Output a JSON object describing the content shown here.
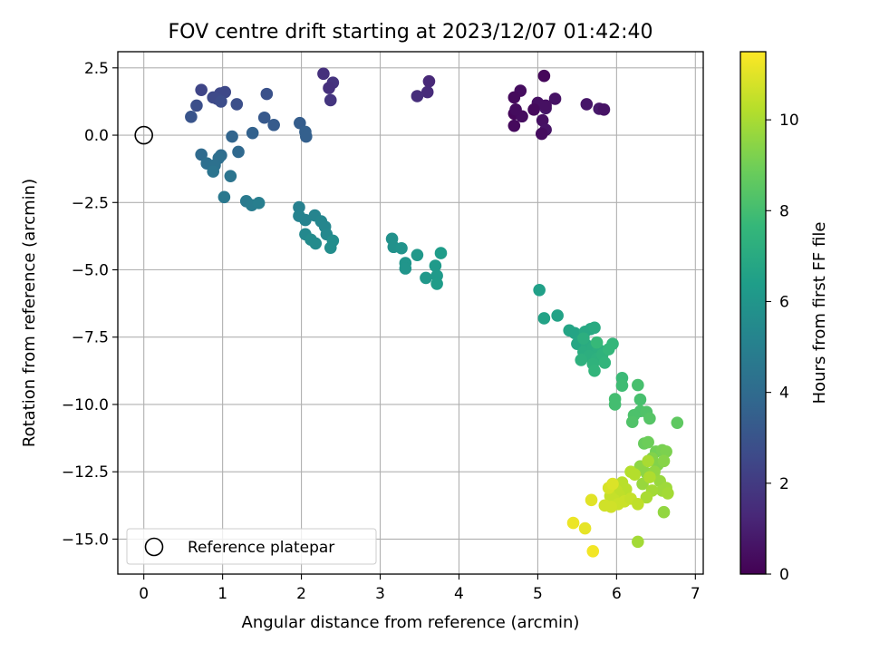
{
  "chart_data": {
    "type": "scatter",
    "title": "FOV centre drift starting at 2023/12/07 01:42:40",
    "xlabel": "Angular distance from reference (arcmin)",
    "ylabel": "Rotation from reference (arcmin)",
    "xlim": [
      -0.33,
      7.1
    ],
    "ylim": [
      -16.3,
      3.1
    ],
    "xticks": [
      0,
      1,
      2,
      3,
      4,
      5,
      6,
      7
    ],
    "yticks": [
      2.5,
      0.0,
      -2.5,
      -5.0,
      -7.5,
      -10.0,
      -12.5,
      -15.0
    ],
    "xtick_labels": [
      "0",
      "1",
      "2",
      "3",
      "4",
      "5",
      "6",
      "7"
    ],
    "ytick_labels": [
      "2.5",
      "0.0",
      "−2.5",
      "−5.0",
      "−7.5",
      "−10.0",
      "−12.5",
      "−15.0"
    ],
    "grid": true,
    "legend": {
      "position": "lower-left",
      "entries": [
        "Reference platepar"
      ]
    },
    "reference_point": {
      "x": 0.0,
      "y": 0.0
    },
    "colorbar": {
      "label": "Hours from first FF file",
      "range": [
        0,
        11.5
      ],
      "ticks": [
        0,
        2,
        4,
        6,
        8,
        10
      ],
      "tick_labels": [
        "0",
        "2",
        "4",
        "6",
        "8",
        "10"
      ],
      "colormap": "viridis"
    },
    "colormap_stops": [
      "#440154",
      "#482878",
      "#3e4989",
      "#31688e",
      "#26828e",
      "#1f9e89",
      "#35b779",
      "#6ece58",
      "#b5de2b",
      "#fde725"
    ],
    "points": [
      {
        "x": 5.08,
        "y": 2.2,
        "c": 0.2
      },
      {
        "x": 4.78,
        "y": 1.65,
        "c": 0.4
      },
      {
        "x": 4.7,
        "y": 1.4,
        "c": 0.3
      },
      {
        "x": 5.0,
        "y": 1.2,
        "c": 0.5
      },
      {
        "x": 5.22,
        "y": 1.35,
        "c": 0.6
      },
      {
        "x": 5.1,
        "y": 1.0,
        "c": 0.7
      },
      {
        "x": 4.95,
        "y": 0.95,
        "c": 0.3
      },
      {
        "x": 4.7,
        "y": 0.8,
        "c": 0.2
      },
      {
        "x": 4.8,
        "y": 0.7,
        "c": 0.4
      },
      {
        "x": 5.06,
        "y": 0.55,
        "c": 0.5
      },
      {
        "x": 4.7,
        "y": 0.35,
        "c": 0.3
      },
      {
        "x": 5.1,
        "y": 0.2,
        "c": 0.6
      },
      {
        "x": 5.05,
        "y": 0.05,
        "c": 0.4
      },
      {
        "x": 5.62,
        "y": 1.15,
        "c": 0.7
      },
      {
        "x": 5.78,
        "y": 0.98,
        "c": 0.8
      },
      {
        "x": 5.84,
        "y": 0.95,
        "c": 0.6
      },
      {
        "x": 5.1,
        "y": 1.1,
        "c": 0.5
      },
      {
        "x": 4.72,
        "y": 0.95,
        "c": 0.35
      },
      {
        "x": 3.62,
        "y": 2.0,
        "c": 1.3
      },
      {
        "x": 3.6,
        "y": 1.6,
        "c": 1.4
      },
      {
        "x": 3.47,
        "y": 1.45,
        "c": 1.5
      },
      {
        "x": 2.28,
        "y": 2.28,
        "c": 1.6
      },
      {
        "x": 2.4,
        "y": 1.95,
        "c": 1.7
      },
      {
        "x": 2.35,
        "y": 1.75,
        "c": 1.6
      },
      {
        "x": 2.37,
        "y": 1.3,
        "c": 1.8
      },
      {
        "x": 0.73,
        "y": 1.68,
        "c": 2.4
      },
      {
        "x": 0.97,
        "y": 1.55,
        "c": 2.5
      },
      {
        "x": 1.03,
        "y": 1.6,
        "c": 2.5
      },
      {
        "x": 0.88,
        "y": 1.4,
        "c": 2.6
      },
      {
        "x": 0.93,
        "y": 1.35,
        "c": 2.6
      },
      {
        "x": 0.98,
        "y": 1.25,
        "c": 2.7
      },
      {
        "x": 1.18,
        "y": 1.15,
        "c": 2.8
      },
      {
        "x": 0.67,
        "y": 1.1,
        "c": 2.8
      },
      {
        "x": 0.6,
        "y": 0.68,
        "c": 3.0
      },
      {
        "x": 1.56,
        "y": 1.53,
        "c": 2.9
      },
      {
        "x": 1.53,
        "y": 0.65,
        "c": 3.2
      },
      {
        "x": 1.65,
        "y": 0.38,
        "c": 3.3
      },
      {
        "x": 1.98,
        "y": 0.45,
        "c": 3.4
      },
      {
        "x": 2.05,
        "y": 0.12,
        "c": 3.5
      },
      {
        "x": 2.06,
        "y": -0.05,
        "c": 3.5
      },
      {
        "x": 1.38,
        "y": 0.08,
        "c": 3.6
      },
      {
        "x": 1.12,
        "y": -0.05,
        "c": 3.7
      },
      {
        "x": 1.2,
        "y": -0.62,
        "c": 3.9
      },
      {
        "x": 0.73,
        "y": -0.72,
        "c": 4.0
      },
      {
        "x": 0.98,
        "y": -0.75,
        "c": 4.1
      },
      {
        "x": 0.95,
        "y": -0.85,
        "c": 4.2
      },
      {
        "x": 0.8,
        "y": -1.05,
        "c": 4.2
      },
      {
        "x": 0.9,
        "y": -1.12,
        "c": 4.3
      },
      {
        "x": 0.88,
        "y": -1.35,
        "c": 4.4
      },
      {
        "x": 1.1,
        "y": -1.52,
        "c": 4.4
      },
      {
        "x": 1.02,
        "y": -2.3,
        "c": 4.6
      },
      {
        "x": 1.3,
        "y": -2.45,
        "c": 4.7
      },
      {
        "x": 1.37,
        "y": -2.6,
        "c": 4.8
      },
      {
        "x": 1.46,
        "y": -2.52,
        "c": 4.9
      },
      {
        "x": 1.97,
        "y": -2.68,
        "c": 5.0
      },
      {
        "x": 1.97,
        "y": -3.0,
        "c": 5.1
      },
      {
        "x": 2.05,
        "y": -3.15,
        "c": 5.1
      },
      {
        "x": 2.17,
        "y": -2.98,
        "c": 5.2
      },
      {
        "x": 2.25,
        "y": -3.2,
        "c": 5.3
      },
      {
        "x": 2.3,
        "y": -3.4,
        "c": 5.3
      },
      {
        "x": 2.32,
        "y": -3.68,
        "c": 5.4
      },
      {
        "x": 2.05,
        "y": -3.68,
        "c": 5.4
      },
      {
        "x": 2.12,
        "y": -3.88,
        "c": 5.5
      },
      {
        "x": 2.18,
        "y": -4.02,
        "c": 5.5
      },
      {
        "x": 2.4,
        "y": -3.92,
        "c": 5.6
      },
      {
        "x": 2.37,
        "y": -4.18,
        "c": 5.6
      },
      {
        "x": 3.15,
        "y": -3.85,
        "c": 5.8
      },
      {
        "x": 3.17,
        "y": -4.15,
        "c": 5.8
      },
      {
        "x": 3.27,
        "y": -4.2,
        "c": 5.9
      },
      {
        "x": 3.32,
        "y": -4.75,
        "c": 6.0
      },
      {
        "x": 3.32,
        "y": -4.95,
        "c": 6.0
      },
      {
        "x": 3.47,
        "y": -4.45,
        "c": 6.1
      },
      {
        "x": 3.58,
        "y": -5.3,
        "c": 6.1
      },
      {
        "x": 3.7,
        "y": -4.85,
        "c": 6.2
      },
      {
        "x": 3.72,
        "y": -5.22,
        "c": 6.2
      },
      {
        "x": 3.72,
        "y": -5.52,
        "c": 6.3
      },
      {
        "x": 3.77,
        "y": -4.38,
        "c": 6.3
      },
      {
        "x": 5.02,
        "y": -5.75,
        "c": 6.5
      },
      {
        "x": 5.08,
        "y": -6.8,
        "c": 6.6
      },
      {
        "x": 5.25,
        "y": -6.7,
        "c": 6.6
      },
      {
        "x": 5.4,
        "y": -7.25,
        "c": 6.7
      },
      {
        "x": 5.47,
        "y": -7.35,
        "c": 6.7
      },
      {
        "x": 5.5,
        "y": -7.75,
        "c": 6.8
      },
      {
        "x": 5.55,
        "y": -7.6,
        "c": 6.8
      },
      {
        "x": 5.6,
        "y": -7.3,
        "c": 6.9
      },
      {
        "x": 5.67,
        "y": -7.2,
        "c": 6.9
      },
      {
        "x": 5.72,
        "y": -7.15,
        "c": 7.0
      },
      {
        "x": 5.62,
        "y": -7.8,
        "c": 7.0
      },
      {
        "x": 5.58,
        "y": -8.05,
        "c": 7.1
      },
      {
        "x": 5.7,
        "y": -7.9,
        "c": 7.1
      },
      {
        "x": 5.77,
        "y": -7.95,
        "c": 7.2
      },
      {
        "x": 5.65,
        "y": -8.2,
        "c": 7.2
      },
      {
        "x": 5.55,
        "y": -8.35,
        "c": 7.3
      },
      {
        "x": 5.75,
        "y": -8.3,
        "c": 7.3
      },
      {
        "x": 5.82,
        "y": -8.15,
        "c": 7.4
      },
      {
        "x": 5.7,
        "y": -8.5,
        "c": 7.4
      },
      {
        "x": 5.72,
        "y": -8.75,
        "c": 7.5
      },
      {
        "x": 5.85,
        "y": -8.45,
        "c": 7.5
      },
      {
        "x": 5.9,
        "y": -7.95,
        "c": 7.6
      },
      {
        "x": 5.95,
        "y": -7.75,
        "c": 7.6
      },
      {
        "x": 5.75,
        "y": -7.7,
        "c": 7.7
      },
      {
        "x": 5.58,
        "y": -7.55,
        "c": 7.2
      },
      {
        "x": 6.07,
        "y": -9.02,
        "c": 7.8
      },
      {
        "x": 6.07,
        "y": -9.3,
        "c": 7.9
      },
      {
        "x": 5.98,
        "y": -9.8,
        "c": 8.0
      },
      {
        "x": 5.98,
        "y": -10.0,
        "c": 8.0
      },
      {
        "x": 6.27,
        "y": -9.28,
        "c": 8.1
      },
      {
        "x": 6.3,
        "y": -9.82,
        "c": 8.1
      },
      {
        "x": 6.3,
        "y": -10.25,
        "c": 8.2
      },
      {
        "x": 6.22,
        "y": -10.4,
        "c": 8.2
      },
      {
        "x": 6.2,
        "y": -10.65,
        "c": 8.3
      },
      {
        "x": 6.38,
        "y": -10.28,
        "c": 8.3
      },
      {
        "x": 6.42,
        "y": -10.52,
        "c": 8.4
      },
      {
        "x": 6.77,
        "y": -10.68,
        "c": 8.6
      },
      {
        "x": 6.35,
        "y": -11.45,
        "c": 8.8
      },
      {
        "x": 6.4,
        "y": -11.4,
        "c": 8.9
      },
      {
        "x": 6.5,
        "y": -11.75,
        "c": 9.0
      },
      {
        "x": 6.58,
        "y": -11.7,
        "c": 9.1
      },
      {
        "x": 6.63,
        "y": -11.75,
        "c": 9.2
      },
      {
        "x": 6.45,
        "y": -12.0,
        "c": 9.3
      },
      {
        "x": 6.52,
        "y": -12.25,
        "c": 9.3
      },
      {
        "x": 6.6,
        "y": -12.1,
        "c": 9.4
      },
      {
        "x": 6.3,
        "y": -12.3,
        "c": 9.5
      },
      {
        "x": 6.38,
        "y": -12.55,
        "c": 9.5
      },
      {
        "x": 6.48,
        "y": -12.5,
        "c": 9.6
      },
      {
        "x": 6.33,
        "y": -12.95,
        "c": 9.7
      },
      {
        "x": 6.55,
        "y": -12.85,
        "c": 9.7
      },
      {
        "x": 6.58,
        "y": -13.2,
        "c": 9.8
      },
      {
        "x": 6.63,
        "y": -13.1,
        "c": 9.8
      },
      {
        "x": 6.65,
        "y": -13.3,
        "c": 9.9
      },
      {
        "x": 6.45,
        "y": -13.2,
        "c": 9.9
      },
      {
        "x": 6.38,
        "y": -13.45,
        "c": 10.0
      },
      {
        "x": 6.4,
        "y": -12.1,
        "c": 10.0
      },
      {
        "x": 6.42,
        "y": -12.7,
        "c": 10.1
      },
      {
        "x": 6.6,
        "y": -14.0,
        "c": 9.6
      },
      {
        "x": 6.27,
        "y": -15.1,
        "c": 9.9
      },
      {
        "x": 6.18,
        "y": -12.5,
        "c": 10.2
      },
      {
        "x": 6.23,
        "y": -12.6,
        "c": 10.2
      },
      {
        "x": 6.07,
        "y": -12.9,
        "c": 10.3
      },
      {
        "x": 6.12,
        "y": -13.15,
        "c": 10.3
      },
      {
        "x": 6.0,
        "y": -13.2,
        "c": 10.4
      },
      {
        "x": 6.03,
        "y": -13.35,
        "c": 10.4
      },
      {
        "x": 5.92,
        "y": -13.4,
        "c": 10.5
      },
      {
        "x": 5.97,
        "y": -13.55,
        "c": 10.5
      },
      {
        "x": 6.02,
        "y": -13.7,
        "c": 10.6
      },
      {
        "x": 5.85,
        "y": -13.75,
        "c": 10.7
      },
      {
        "x": 5.93,
        "y": -13.8,
        "c": 10.7
      },
      {
        "x": 6.1,
        "y": -13.6,
        "c": 10.6
      },
      {
        "x": 6.18,
        "y": -13.5,
        "c": 10.5
      },
      {
        "x": 6.27,
        "y": -13.7,
        "c": 10.4
      },
      {
        "x": 5.68,
        "y": -13.55,
        "c": 11.0
      },
      {
        "x": 5.6,
        "y": -14.6,
        "c": 11.1
      },
      {
        "x": 5.45,
        "y": -14.4,
        "c": 11.2
      },
      {
        "x": 5.7,
        "y": -15.45,
        "c": 11.3
      },
      {
        "x": 5.9,
        "y": -13.1,
        "c": 10.8
      },
      {
        "x": 5.95,
        "y": -12.95,
        "c": 10.9
      }
    ]
  }
}
